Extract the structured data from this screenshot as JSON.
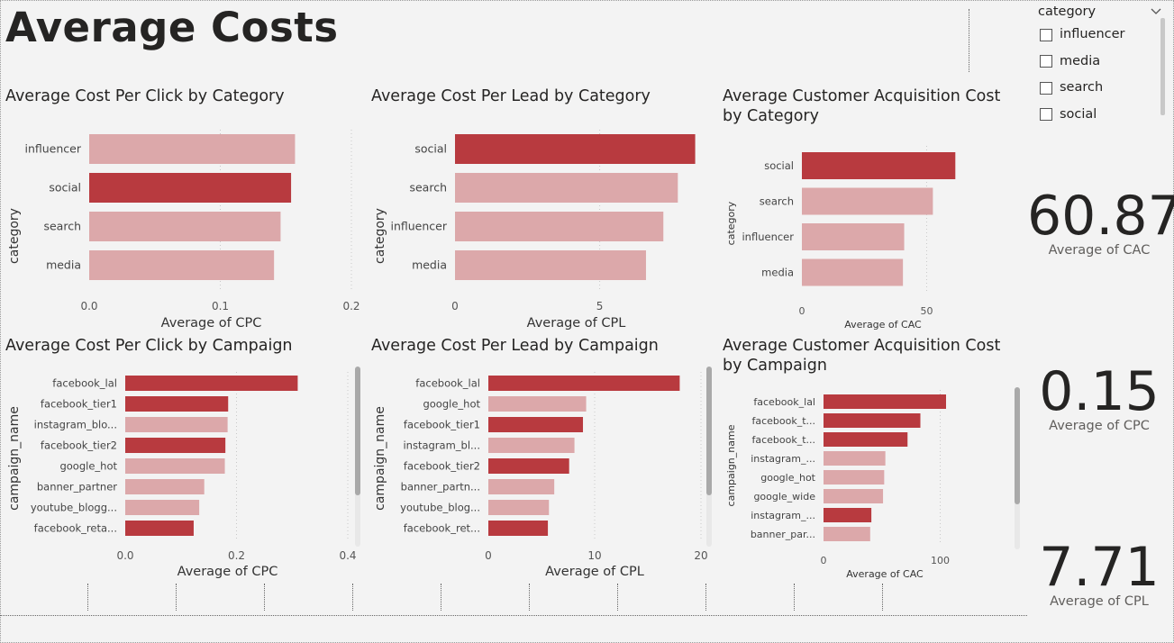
{
  "page_title": "Average Costs",
  "colors": {
    "highlight": "#b83a3f",
    "normal": "#dca8aa"
  },
  "slicer": {
    "title": "category",
    "items": [
      {
        "label": "influencer",
        "checked": false
      },
      {
        "label": "media",
        "checked": false
      },
      {
        "label": "search",
        "checked": false
      },
      {
        "label": "social",
        "checked": false
      }
    ]
  },
  "cards": {
    "cac": {
      "value": "60.87",
      "label": "Average of CAC"
    },
    "cpc": {
      "value": "0.15",
      "label": "Average of CPC"
    },
    "cpl": {
      "value": "7.71",
      "label": "Average of CPL"
    }
  },
  "chart_data": [
    {
      "id": "cpc-by-category",
      "type": "bar",
      "orientation": "horizontal",
      "title": "Average Cost Per Click by Category",
      "xlabel": "Average of CPC",
      "ylabel": "category",
      "categories": [
        "influencer",
        "social",
        "search",
        "media"
      ],
      "values": [
        0.157,
        0.154,
        0.146,
        0.141
      ],
      "highlight": [
        false,
        true,
        false,
        false
      ],
      "xlim": [
        0,
        0.2
      ],
      "xticks": [
        0,
        0.1,
        0.2
      ],
      "xtick_labels": [
        "0.0",
        "0.1",
        "0.2"
      ]
    },
    {
      "id": "cpl-by-category",
      "type": "bar",
      "orientation": "horizontal",
      "title": "Average Cost Per Lead by Category",
      "xlabel": "Average of CPL",
      "ylabel": "category",
      "categories": [
        "social",
        "search",
        "influencer",
        "media"
      ],
      "values": [
        8.3,
        7.7,
        7.2,
        6.6
      ],
      "highlight": [
        true,
        false,
        false,
        false
      ],
      "xlim": [
        0,
        8.5
      ],
      "xticks": [
        0,
        5
      ],
      "xtick_labels": [
        "0",
        "5"
      ]
    },
    {
      "id": "cac-by-category",
      "type": "bar",
      "orientation": "horizontal",
      "title": "Average Customer Acquisition Cost by Category",
      "xlabel": "Average of CAC",
      "ylabel": "category",
      "categories": [
        "social",
        "search",
        "influencer",
        "media"
      ],
      "values": [
        61.5,
        52.5,
        41,
        40.5
      ],
      "highlight": [
        true,
        false,
        false,
        false
      ],
      "xlim": [
        0,
        65
      ],
      "xticks": [
        0,
        50
      ],
      "xtick_labels": [
        "0",
        "50"
      ]
    },
    {
      "id": "cpc-by-campaign",
      "type": "bar",
      "orientation": "horizontal",
      "title": "Average Cost Per Click by Campaign",
      "xlabel": "Average of CPC",
      "ylabel": "campaign_name",
      "categories": [
        "facebook_lal",
        "facebook_tier1",
        "instagram_blo...",
        "facebook_tier2",
        "google_hot",
        "banner_partner",
        "youtube_blogg...",
        "facebook_reta..."
      ],
      "values": [
        0.31,
        0.185,
        0.184,
        0.18,
        0.179,
        0.142,
        0.133,
        0.123
      ],
      "highlight": [
        true,
        true,
        false,
        true,
        false,
        false,
        false,
        true
      ],
      "xlim": [
        0,
        0.4
      ],
      "xticks": [
        0,
        0.2,
        0.4
      ],
      "xtick_labels": [
        "0.0",
        "0.2",
        "0.4"
      ]
    },
    {
      "id": "cpl-by-campaign",
      "type": "bar",
      "orientation": "horizontal",
      "title": "Average Cost Per Lead by Campaign",
      "xlabel": "Average of CPL",
      "ylabel": "campaign_name",
      "categories": [
        "facebook_lal",
        "google_hot",
        "facebook_tier1",
        "instagram_bl...",
        "facebook_tier2",
        "banner_partn...",
        "youtube_blog...",
        "facebook_ret..."
      ],
      "values": [
        18,
        9.2,
        8.9,
        8.1,
        7.6,
        6.2,
        5.7,
        5.6
      ],
      "highlight": [
        true,
        false,
        true,
        false,
        true,
        false,
        false,
        true
      ],
      "xlim": [
        0,
        20
      ],
      "xticks": [
        0,
        10,
        20
      ],
      "xtick_labels": [
        "0",
        "10",
        "20"
      ]
    },
    {
      "id": "cac-by-campaign",
      "type": "bar",
      "orientation": "horizontal",
      "title": "Average Customer Acquisition Cost by Campaign",
      "xlabel": "Average of CAC",
      "ylabel": "campaign_name",
      "categories": [
        "facebook_lal",
        "facebook_t...",
        "facebook_t...",
        "instagram_...",
        "google_hot",
        "google_wide",
        "instagram_...",
        "banner_par..."
      ],
      "values": [
        105,
        83,
        72,
        53,
        52,
        51,
        41,
        40
      ],
      "highlight": [
        true,
        true,
        true,
        false,
        false,
        false,
        true,
        false
      ],
      "xlim": [
        0,
        105
      ],
      "xticks": [
        0,
        100
      ],
      "xtick_labels": [
        "0",
        "100"
      ]
    }
  ]
}
